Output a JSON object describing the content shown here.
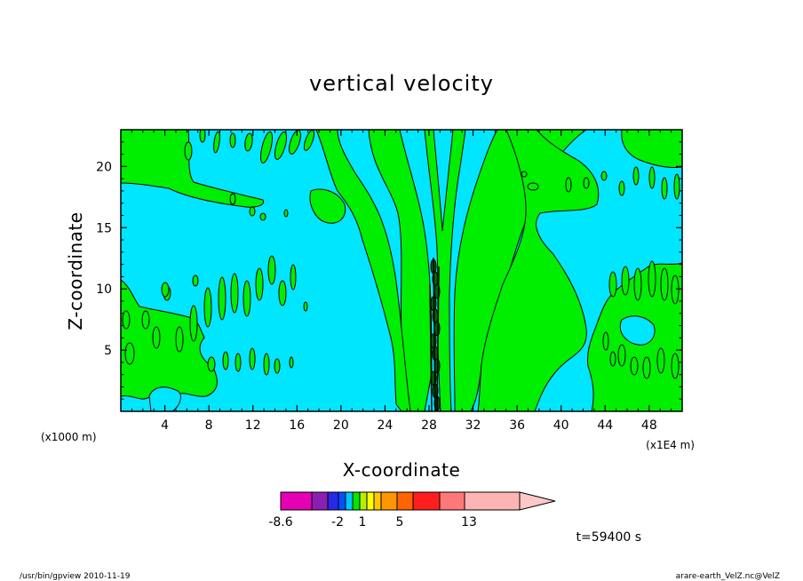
{
  "chart_data": {
    "type": "heatmap",
    "title": "vertical velocity",
    "xlabel": "X-coordinate",
    "ylabel": "Z-coordinate",
    "x_unit_left": "(x1000 m)",
    "x_unit_right": "(x1E4 m)",
    "xlim": [
      0,
      51
    ],
    "ylim": [
      0,
      23
    ],
    "x_ticks": [
      4,
      8,
      12,
      16,
      20,
      24,
      28,
      32,
      36,
      40,
      44,
      48
    ],
    "y_ticks": [
      5,
      10,
      15,
      20
    ],
    "grid": false,
    "colorbar": {
      "colors": [
        "#e600b4",
        "#8c1eb4",
        "#2828e6",
        "#0050ff",
        "#00c8ff",
        "#00e600",
        "#b4f000",
        "#ffff00",
        "#ffc800",
        "#ff9600",
        "#ff6400",
        "#ff1e1e",
        "#ff7878",
        "#ffb4b4",
        "#ffc8c8"
      ],
      "labels": [
        "-8.6",
        "-2",
        "1",
        "5",
        "13"
      ]
    },
    "background_color": "#00e6ff",
    "feature_color": "#00ee00",
    "time_label": "t=59400 s"
  },
  "footer": {
    "left": "/usr/bin/gpview   2010-11-19",
    "right": "arare-earth_VelZ.nc@VelZ"
  }
}
